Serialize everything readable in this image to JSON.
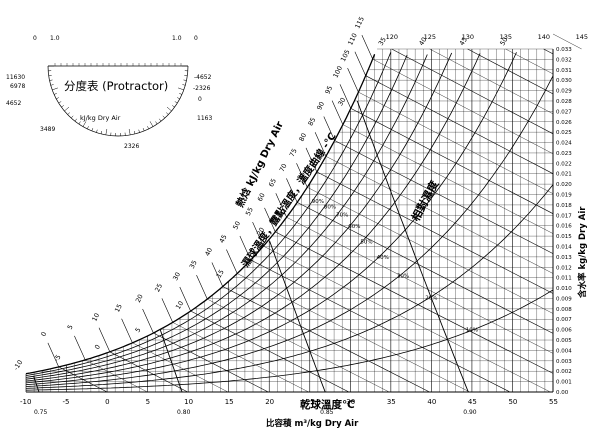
{
  "chart_data": {
    "type": "psychrometric",
    "x": {
      "label": "乾球溫度℃",
      "ticks": [
        "-10",
        "-5",
        "0",
        "5",
        "10",
        "15",
        "20",
        "25",
        "30",
        "35",
        "40",
        "45",
        "50",
        "55"
      ],
      "range": [
        -10,
        55
      ]
    },
    "y": {
      "label": "含水率 kg/kg Dry Air",
      "ticks": [
        "0.00",
        "0.001",
        "0.002",
        "0.003",
        "0.004",
        "0.005",
        "0.006",
        "0.007",
        "0.008",
        "0.009",
        "0.010",
        "0.011",
        "0.012",
        "0.013",
        "0.014",
        "0.015",
        "0.016",
        "0.017",
        "0.018",
        "0.019",
        "0.020",
        "0.021",
        "0.022",
        "0.023",
        "0.024",
        "0.025",
        "0.026",
        "0.027",
        "0.028",
        "0.029",
        "0.030",
        "0.031",
        "0.032",
        "0.033"
      ],
      "range": [
        0,
        0.033
      ]
    },
    "relative_humidity": {
      "label": "相對濕度",
      "curves": [
        "10%",
        "20%",
        "30%",
        "40%",
        "50%",
        "60%",
        "70%",
        "80%",
        "90%"
      ],
      "values": [
        0.1,
        0.2,
        0.3,
        0.4,
        0.5,
        0.6,
        0.7,
        0.8,
        0.9
      ]
    },
    "enthalpy": {
      "label": "熱焓 kJ/kg Dry Air",
      "scale_ticks": [
        "0",
        "5",
        "10",
        "15",
        "20",
        "25",
        "30",
        "35",
        "40",
        "45",
        "50",
        "55",
        "60",
        "65",
        "70",
        "75",
        "80",
        "85",
        "90",
        "95",
        "100",
        "105",
        "110",
        "115"
      ],
      "values": [
        0,
        5,
        10,
        15,
        20,
        25,
        30,
        35,
        40,
        45,
        50,
        55,
        60,
        65,
        70,
        75,
        80,
        85,
        90,
        95,
        100,
        105,
        110,
        115
      ],
      "top_ticks": [
        "120",
        "125",
        "130",
        "135",
        "140",
        "145"
      ],
      "top_values": [
        120,
        125,
        130,
        135,
        140,
        145
      ]
    },
    "saturation_scale": {
      "label": "濕球溫度，露點溫度，溫度曲線 -℃",
      "ticks": [
        "-10",
        "-5",
        "0",
        "5",
        "10",
        "15",
        "20",
        "25",
        "30",
        "35",
        "40",
        "45",
        "50"
      ],
      "values": [
        -10,
        -5,
        0,
        5,
        10,
        15,
        20,
        25,
        30,
        35,
        40,
        45,
        50
      ]
    },
    "specific_volume": {
      "label": "比容積 m³/kg Dry Air",
      "ticks": [
        "0.75",
        "0.80",
        "0.85",
        "0.90"
      ],
      "values": [
        0.75,
        0.8,
        0.85,
        0.9
      ]
    },
    "protractor": {
      "title": "分度表 (Protractor)",
      "subtitle": "kJ/kg Dry Air",
      "labels": [
        "0",
        "1.0",
        "1.0",
        "0",
        "-4652",
        "-2326",
        "0",
        "1163",
        "2326",
        "3489",
        "4652",
        "6978",
        "11630"
      ],
      "label_left_top": "11630",
      "label_left_mid": "6978",
      "label_left_low": "4652",
      "label_bottom_left": "3489",
      "label_bottom": "2326",
      "label_right_top": "-4652",
      "label_right_mid": "-2326",
      "label_right_zero": "0",
      "label_right_low": "1163",
      "label_top_left_zero": "0",
      "label_top_left": "1.0",
      "label_top_right": "1.0",
      "label_top_right_zero": "0"
    }
  }
}
